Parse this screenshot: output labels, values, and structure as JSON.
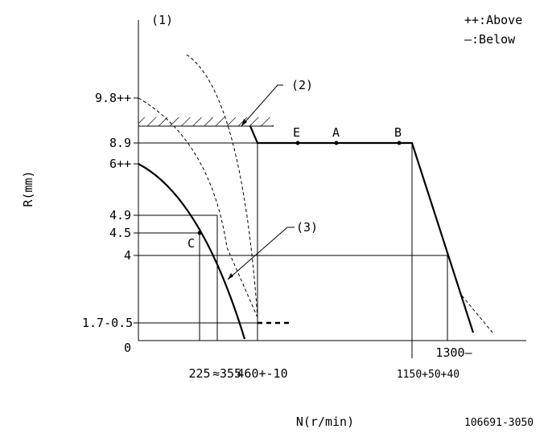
{
  "header": {
    "figure_marker": "(1)",
    "legend_above": "++:Above",
    "legend_below": "—:Below"
  },
  "axes": {
    "y_label": "R(mm)",
    "x_label": "N(r/min)",
    "y_ticks": [
      "9.8++",
      "8.9",
      "6++",
      "4.9",
      "4.5",
      "4",
      "1.7-0.5",
      "0"
    ],
    "x_ticks": [
      "225",
      "≈355",
      "460+-10",
      "1150+50+40",
      "1300—"
    ]
  },
  "callouts": {
    "c2": "(2)",
    "c3": "(3)"
  },
  "points": {
    "E": "E",
    "A": "A",
    "B": "B",
    "C": "C"
  },
  "footer": {
    "code": "106691-3050"
  }
}
